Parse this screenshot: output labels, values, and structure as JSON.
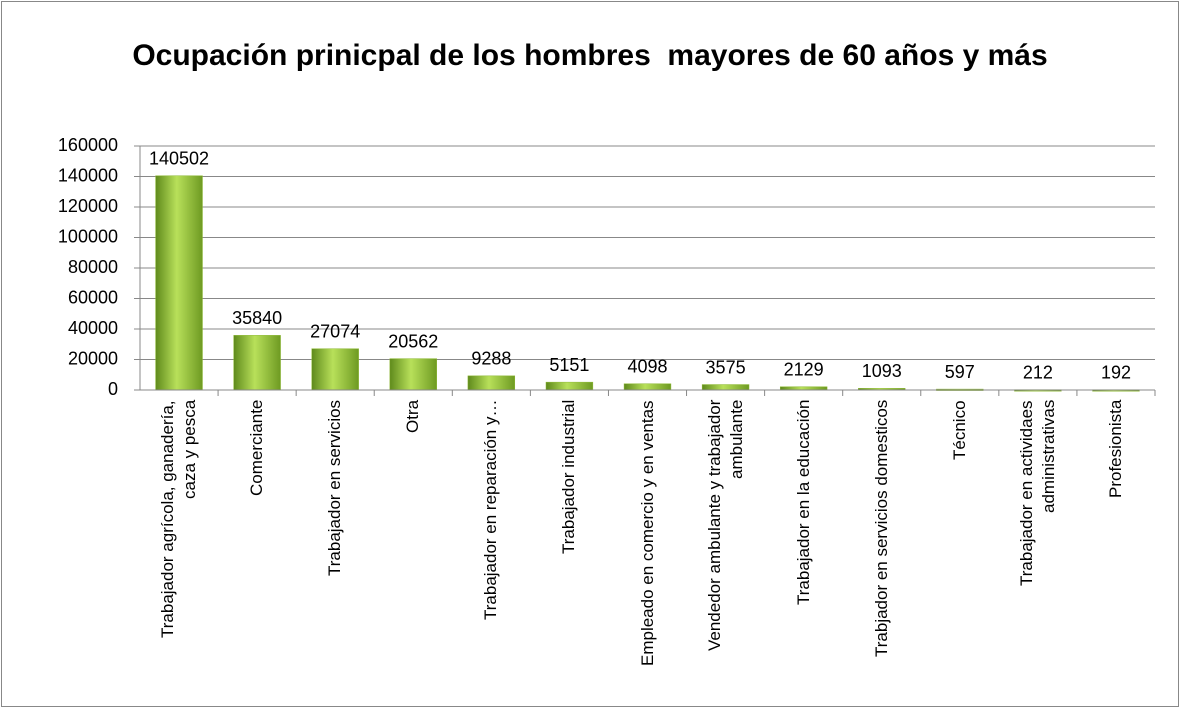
{
  "chart_data": {
    "type": "bar",
    "title": "Ocupación prinicpal de los hombres  mayores de 60 años y más",
    "categories": [
      "Trabajador agrícola, ganadería, caza y pesca",
      "Comerciante",
      "Trabajador en servicios",
      "Otra",
      "Trabajador en reparación y…",
      "Trabajador industrial",
      "Empleado en comercio y en ventas",
      "Vendedor ambulante y trabajador ambulante",
      "Trabajador en la educación",
      "Trabjador en servicios domesticos",
      "Técnico",
      "Trabajador en actividaes administrativas",
      "Profesionista"
    ],
    "values": [
      140502,
      35840,
      27074,
      20562,
      9288,
      5151,
      4098,
      3575,
      2129,
      1093,
      597,
      212,
      192
    ],
    "color": "#8cb832",
    "ylim": [
      0,
      160000
    ],
    "yticks": [
      0,
      20000,
      40000,
      60000,
      80000,
      100000,
      120000,
      140000,
      160000
    ],
    "grid": true
  }
}
